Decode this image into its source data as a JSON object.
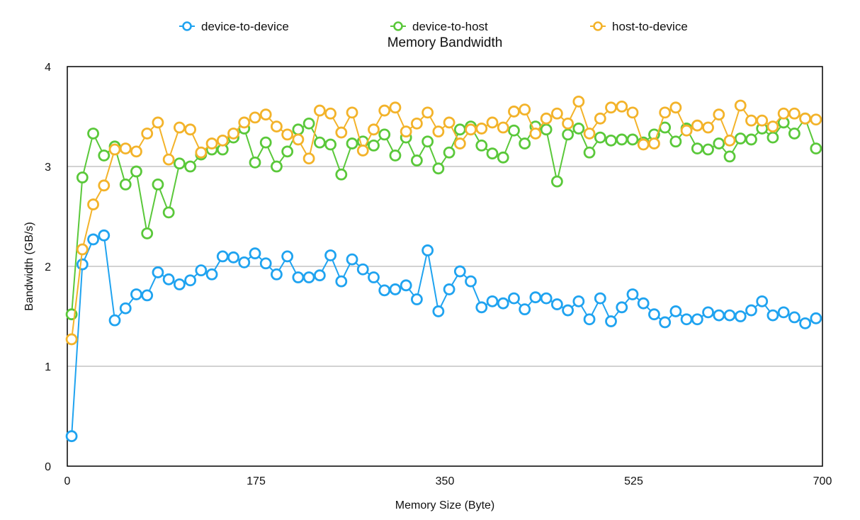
{
  "chart_data": {
    "type": "line",
    "title": "Memory Bandwidth",
    "xlabel": "Memory Size (Byte)",
    "ylabel": "Bandwidth (GB/s)",
    "xlim": [
      0,
      700
    ],
    "ylim": [
      0,
      4
    ],
    "xticks": [
      0,
      175,
      350,
      525,
      700
    ],
    "yticks": [
      0,
      1,
      2,
      3,
      4
    ],
    "grid": "horizontal",
    "legend_position": "top",
    "x": [
      4,
      14,
      24,
      34,
      44,
      54,
      64,
      74,
      84,
      94,
      104,
      114,
      124,
      134,
      144,
      154,
      164,
      174,
      184,
      194,
      204,
      214,
      224,
      234,
      244,
      254,
      264,
      274,
      284,
      294,
      304,
      314,
      324,
      334,
      344,
      354,
      364,
      374,
      384,
      394,
      404,
      414,
      424,
      434,
      444,
      454,
      464,
      474,
      484,
      494,
      504,
      514,
      524,
      534,
      544,
      554,
      564,
      574,
      584,
      594,
      604,
      614,
      624,
      634,
      644,
      654,
      664,
      674,
      684,
      694
    ],
    "series": [
      {
        "name": "device-to-device",
        "color": "#1fa3f0",
        "values": [
          0.3,
          2.02,
          2.27,
          2.31,
          1.46,
          1.58,
          1.72,
          1.71,
          1.94,
          1.87,
          1.82,
          1.86,
          1.96,
          1.92,
          2.1,
          2.09,
          2.04,
          2.13,
          2.03,
          1.92,
          2.1,
          1.89,
          1.89,
          1.91,
          2.11,
          1.85,
          2.07,
          1.97,
          1.89,
          1.76,
          1.77,
          1.81,
          1.67,
          2.16,
          1.55,
          1.77,
          1.95,
          1.85,
          1.59,
          1.65,
          1.63,
          1.68,
          1.57,
          1.69,
          1.68,
          1.62,
          1.56,
          1.65,
          1.47,
          1.68,
          1.45,
          1.59,
          1.72,
          1.63,
          1.52,
          1.44,
          1.55,
          1.47,
          1.47,
          1.54,
          1.51,
          1.51,
          1.5,
          1.56,
          1.65,
          1.51,
          1.54,
          1.49,
          1.43,
          1.48
        ]
      },
      {
        "name": "device-to-host",
        "color": "#5ac83a",
        "values": [
          1.52,
          2.89,
          3.33,
          3.11,
          3.2,
          2.82,
          2.95,
          2.33,
          2.82,
          2.54,
          3.03,
          3.0,
          3.12,
          3.17,
          3.17,
          3.29,
          3.38,
          3.04,
          3.24,
          3.0,
          3.15,
          3.37,
          3.43,
          3.24,
          3.22,
          2.92,
          3.23,
          3.25,
          3.21,
          3.32,
          3.11,
          3.29,
          3.06,
          3.25,
          2.98,
          3.14,
          3.37,
          3.4,
          3.21,
          3.13,
          3.09,
          3.36,
          3.23,
          3.4,
          3.37,
          2.85,
          3.32,
          3.38,
          3.14,
          3.29,
          3.26,
          3.27,
          3.27,
          3.24,
          3.32,
          3.39,
          3.25,
          3.38,
          3.18,
          3.17,
          3.23,
          3.1,
          3.28,
          3.27,
          3.38,
          3.29,
          3.44,
          3.33,
          3.48,
          3.18
        ]
      },
      {
        "name": "host-to-device",
        "color": "#f3b32a",
        "values": [
          1.27,
          2.17,
          2.62,
          2.81,
          3.17,
          3.18,
          3.15,
          3.33,
          3.44,
          3.07,
          3.39,
          3.37,
          3.14,
          3.23,
          3.26,
          3.33,
          3.44,
          3.49,
          3.52,
          3.4,
          3.32,
          3.27,
          3.08,
          3.56,
          3.53,
          3.34,
          3.54,
          3.16,
          3.37,
          3.56,
          3.59,
          3.35,
          3.43,
          3.54,
          3.35,
          3.44,
          3.23,
          3.37,
          3.38,
          3.44,
          3.39,
          3.55,
          3.57,
          3.33,
          3.48,
          3.53,
          3.43,
          3.65,
          3.33,
          3.48,
          3.59,
          3.6,
          3.54,
          3.22,
          3.23,
          3.54,
          3.59,
          3.36,
          3.41,
          3.39,
          3.52,
          3.26,
          3.61,
          3.46,
          3.46,
          3.4,
          3.53,
          3.53,
          3.48,
          3.47
        ]
      }
    ]
  }
}
